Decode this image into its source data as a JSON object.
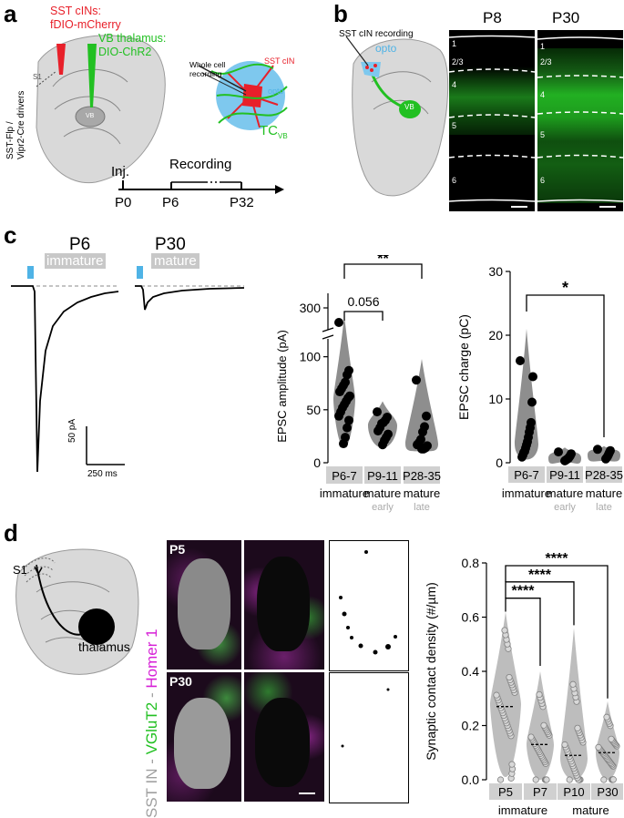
{
  "panel_labels": {
    "a": "a",
    "b": "b",
    "c": "c",
    "d": "d"
  },
  "colors": {
    "red": "#e8202a",
    "green": "#22c022",
    "blue": "#4fb3e6",
    "grey_band": "#cfcfcf",
    "magenta": "#d61fd6"
  },
  "a": {
    "sst_label_1": "SST cINs:",
    "sst_label_2": "fDIO-mCherry",
    "vb_label_1": "VB thalamus:",
    "vb_label_2": "DIO-ChR2",
    "driver_1": "SST-Flp /",
    "driver_2": "Vipr2-Cre drivers",
    "s1": "S1",
    "vb": "VB",
    "whole_cell_1": "Whole cell",
    "whole_cell_2": "recording",
    "sst_cin": "SST cIN",
    "opto": "opto",
    "tc": "TC",
    "tc_sub": "VB",
    "inj": "Inj.",
    "recording": "Recording",
    "p0": "P0",
    "p6": "P6",
    "p32": "P32"
  },
  "b": {
    "sst_rec": "SST cIN recording",
    "opto": "opto",
    "vb": "VB",
    "p8": "P8",
    "p30": "P30",
    "layers_p8": [
      "1",
      "2/3",
      "4",
      "5",
      "6"
    ],
    "layers_p30": [
      "1",
      "2/3",
      "4",
      "5",
      "6"
    ]
  },
  "c": {
    "p6": "P6",
    "p30": "P30",
    "immature_tag": "immature",
    "mature_tag": "mature",
    "scale_y": "50 pA",
    "scale_x": "250 ms",
    "sig_ns": "0.056",
    "sig_amp": "**",
    "sig_charge": "*"
  },
  "d": {
    "s1": "S1",
    "layers": "2/3 4 5 6",
    "thalamus": "thalamus",
    "p5": "P5",
    "p30": "P30",
    "channel_label_sst": "SST IN",
    "channel_label_sep1": " - ",
    "channel_label_vglut": "VGluT2",
    "channel_label_sep2": " - ",
    "channel_label_homer": "Homer 1",
    "sig_1": "****",
    "sig_2": "****",
    "sig_3": "****"
  },
  "chart_data": [
    {
      "type": "scatter",
      "subtype": "violin",
      "ylabel": "EPSC amplitude (pA)",
      "categories": [
        "P6-7",
        "P9-11",
        "P28-35"
      ],
      "category_sublabels": [
        "immature",
        "mature",
        "mature"
      ],
      "category_subsublabels": [
        "",
        "early",
        "late"
      ],
      "yticks": [
        0,
        50,
        100,
        300
      ],
      "ylim": [
        0,
        310
      ],
      "axis_break": [
        115,
        280
      ],
      "series": [
        {
          "category": "P6-7",
          "values": [
            280,
            87,
            83,
            76,
            73,
            70,
            67,
            63,
            61,
            58,
            55,
            52,
            48,
            44,
            40,
            33,
            24,
            18
          ]
        },
        {
          "category": "P9-11",
          "values": [
            48,
            43,
            40,
            38,
            37,
            33,
            30,
            27,
            24,
            21,
            17
          ]
        },
        {
          "category": "P28-35",
          "values": [
            78,
            44,
            34,
            29,
            22,
            19,
            17,
            16,
            14,
            13,
            13
          ]
        }
      ],
      "significance": [
        {
          "from": "P6-7",
          "to": "P9-11",
          "label": "0.056"
        },
        {
          "from": "P6-7",
          "to": "P28-35",
          "label": "**"
        }
      ]
    },
    {
      "type": "scatter",
      "subtype": "violin",
      "ylabel": "EPSC  charge (pC)",
      "categories": [
        "P6-7",
        "P9-11",
        "P28-35"
      ],
      "category_sublabels": [
        "immature",
        "mature",
        "mature"
      ],
      "category_subsublabels": [
        "",
        "early",
        "late"
      ],
      "yticks": [
        0,
        10,
        20,
        30
      ],
      "ylim": [
        0,
        30
      ],
      "series": [
        {
          "category": "P6-7",
          "values": [
            16,
            13.5,
            9.5,
            6.3,
            5.5,
            4.8,
            4.0,
            3.3,
            2.8,
            2.3,
            1.8,
            1.6,
            1.2,
            0.9
          ]
        },
        {
          "category": "P9-11",
          "values": [
            1.7,
            1.4,
            1.1,
            0.9,
            0.7,
            0.6,
            0.5,
            0.4,
            0.3
          ]
        },
        {
          "category": "P28-35",
          "values": [
            2.1,
            1.9,
            1.6,
            1.3,
            1.0,
            0.8,
            0.6
          ]
        }
      ],
      "significance": [
        {
          "from": "P6-7",
          "to": "P28-35",
          "label": "*"
        }
      ]
    },
    {
      "type": "scatter",
      "subtype": "violin",
      "ylabel": "Synaptic contact density (#/µm)",
      "categories": [
        "P5",
        "P7",
        "P10",
        "P30"
      ],
      "category_sublabels": [
        "immature",
        "immature",
        "mature",
        "mature"
      ],
      "yticks": [
        0.0,
        0.2,
        0.4,
        0.6,
        0.8
      ],
      "ylim": [
        0,
        0.8
      ],
      "medians": [
        0.27,
        0.13,
        0.09,
        0.1
      ],
      "series": [
        {
          "category": "P5",
          "median": 0.27,
          "range": [
            0.02,
            0.6
          ]
        },
        {
          "category": "P7",
          "median": 0.13,
          "range": [
            0.0,
            0.38
          ]
        },
        {
          "category": "P10",
          "median": 0.09,
          "range": [
            0.0,
            0.54
          ]
        },
        {
          "category": "P30",
          "median": 0.1,
          "range": [
            0.0,
            0.27
          ]
        }
      ],
      "significance": [
        {
          "from": "P5",
          "to": "P7",
          "label": "****"
        },
        {
          "from": "P5",
          "to": "P10",
          "label": "****"
        },
        {
          "from": "P5",
          "to": "P30",
          "label": "****"
        }
      ]
    }
  ]
}
